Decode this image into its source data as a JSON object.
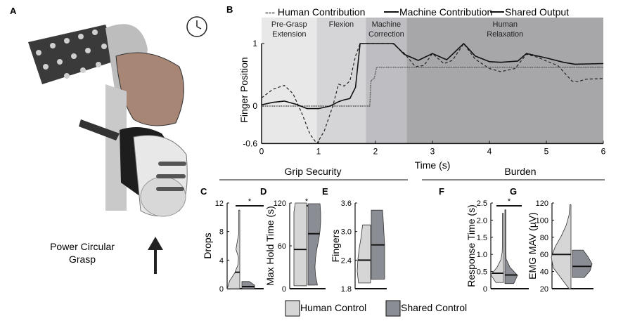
{
  "panel_labels": {
    "a": "A",
    "b": "B",
    "c": "C",
    "d": "D",
    "e": "E",
    "f": "F",
    "g": "G"
  },
  "panel_a": {
    "caption_line1": "Power Circular",
    "caption_line2": "Grasp",
    "icons": [
      "clock-icon",
      "up-arrow-icon",
      "prosthetic-hand-illustration"
    ]
  },
  "groups": {
    "grip_security": "Grip Security",
    "burden": "Burden"
  },
  "legend_bottom": {
    "human": "Human Control",
    "shared": "Shared Control",
    "human_color": "#d6d6d6",
    "shared_color": "#8a8e94"
  },
  "chart_data": [
    {
      "id": "B",
      "type": "line",
      "xlabel": "Time (s)",
      "ylabel": "Finger Position",
      "xlim": [
        0,
        6
      ],
      "ylim": [
        -0.6,
        1
      ],
      "xticks": [
        "0",
        "1",
        "2",
        "3",
        "4",
        "5",
        "6"
      ],
      "yticks": [
        {
          "v": 1,
          "label": "1"
        },
        {
          "v": 0,
          "label": "0"
        },
        {
          "v": -0.6,
          "label": "-0.6"
        }
      ],
      "legend": [
        "--- Human Contribution",
        "Machine Contribution",
        "Shared Output"
      ],
      "phases": [
        {
          "label1": "Pre-Grasp",
          "label2": "Extension",
          "start": 0,
          "end": 0.97,
          "color": "#e8e8e8"
        },
        {
          "label1": "Flexion",
          "label2": "",
          "start": 0.97,
          "end": 1.83,
          "color": "#d5d5d7"
        },
        {
          "label1": "Machine",
          "label2": "Correction",
          "start": 1.83,
          "end": 2.55,
          "color": "#bebdc1"
        },
        {
          "label1": "Human",
          "label2": "Relaxation",
          "start": 2.55,
          "end": 6,
          "color": "#a7a6a8"
        }
      ],
      "series": [
        {
          "name": "Human Contribution",
          "style": "dashed",
          "points": [
            [
              0,
              0.13
            ],
            [
              0.2,
              0.27
            ],
            [
              0.4,
              0.33
            ],
            [
              0.55,
              0.2
            ],
            [
              0.7,
              -0.1
            ],
            [
              0.85,
              -0.45
            ],
            [
              0.97,
              -0.6
            ],
            [
              1.1,
              -0.4
            ],
            [
              1.25,
              0
            ],
            [
              1.35,
              0.35
            ],
            [
              1.45,
              0.32
            ],
            [
              1.55,
              0.4
            ],
            [
              1.65,
              0.8
            ],
            [
              1.73,
              1
            ],
            [
              2.3,
              1
            ],
            [
              2.5,
              0.85
            ],
            [
              2.7,
              0.63
            ],
            [
              2.85,
              0.65
            ],
            [
              3.0,
              0.84
            ],
            [
              3.2,
              0.68
            ],
            [
              3.35,
              0.73
            ],
            [
              3.55,
              1
            ],
            [
              3.75,
              0.75
            ],
            [
              4.0,
              0.6
            ],
            [
              4.2,
              0.55
            ],
            [
              4.45,
              0.6
            ],
            [
              4.65,
              0.83
            ],
            [
              4.85,
              0.78
            ],
            [
              5.0,
              0.72
            ],
            [
              5.2,
              0.65
            ],
            [
              5.3,
              0.55
            ],
            [
              5.45,
              0.4
            ],
            [
              5.55,
              0.39
            ],
            [
              5.7,
              0.43
            ],
            [
              6,
              0.44
            ]
          ]
        },
        {
          "name": "Machine Contribution",
          "style": "dotted",
          "points": [
            [
              0,
              0
            ],
            [
              1.9,
              0
            ],
            [
              1.92,
              0.4
            ],
            [
              1.98,
              0.45
            ],
            [
              2.02,
              0.62
            ],
            [
              6,
              0.62
            ]
          ]
        },
        {
          "name": "Shared Output",
          "style": "solid",
          "points": [
            [
              0,
              0.02
            ],
            [
              0.2,
              0.06
            ],
            [
              0.4,
              0.08
            ],
            [
              0.6,
              0.03
            ],
            [
              0.8,
              -0.04
            ],
            [
              1.0,
              -0.04
            ],
            [
              1.2,
              0
            ],
            [
              1.35,
              0.07
            ],
            [
              1.45,
              0.1
            ],
            [
              1.55,
              0.12
            ],
            [
              1.65,
              0.3
            ],
            [
              1.73,
              1
            ],
            [
              2.32,
              1
            ],
            [
              2.5,
              0.83
            ],
            [
              2.75,
              0.73
            ],
            [
              3.0,
              0.84
            ],
            [
              3.25,
              0.74
            ],
            [
              3.55,
              1
            ],
            [
              3.75,
              0.8
            ],
            [
              4.0,
              0.71
            ],
            [
              4.2,
              0.7
            ],
            [
              4.5,
              0.72
            ],
            [
              4.65,
              0.84
            ],
            [
              5.0,
              0.77
            ],
            [
              5.3,
              0.7
            ],
            [
              5.5,
              0.67
            ],
            [
              6,
              0.68
            ]
          ]
        }
      ]
    },
    {
      "id": "C",
      "type": "violin",
      "ylabel": "Drops",
      "ylim": [
        0,
        12
      ],
      "yticks": [
        "0",
        "4",
        "8",
        "12"
      ],
      "significance": "*",
      "violins": [
        {
          "group": "Human Control",
          "min": 0,
          "max": 11,
          "median": 2.3,
          "density": [
            1,
            0.8,
            0.4,
            0.15,
            0.1,
            0.3,
            0.2,
            0.05,
            0.05,
            0.05,
            0.02
          ]
        },
        {
          "group": "Shared Control",
          "min": 0,
          "max": 1,
          "median": 0.3,
          "density": [
            1,
            1,
            0.6
          ]
        }
      ]
    },
    {
      "id": "D",
      "type": "violin",
      "ylabel": "Max Hold Time (s)",
      "ylim": [
        0,
        120
      ],
      "yticks": [
        "0",
        "60",
        "120"
      ],
      "significance": "*",
      "violins": [
        {
          "group": "Human Control",
          "min": 4,
          "max": 120,
          "median": 55,
          "density": [
            1,
            1,
            1,
            1,
            1,
            1,
            1,
            1,
            1,
            0.9
          ]
        },
        {
          "group": "Shared Control",
          "min": 5,
          "max": 119,
          "median": 77,
          "density": [
            0.75,
            0.6,
            0.55,
            0.6,
            0.7,
            0.85,
            0.95,
            1,
            1,
            0.95
          ]
        }
      ]
    },
    {
      "id": "E",
      "type": "violin",
      "ylabel": "Fingers",
      "ylim": [
        1.8,
        3.6
      ],
      "yticks": [
        "1.8",
        "2.4",
        "3.0",
        "3.6"
      ],
      "significance": "",
      "violins": [
        {
          "group": "Human Control",
          "min": 1.92,
          "max": 3.14,
          "median": 2.4,
          "density": [
            0.9,
            1,
            0.95,
            0.85,
            0.7,
            0.6
          ]
        },
        {
          "group": "Shared Control",
          "min": 2.0,
          "max": 3.45,
          "median": 2.72,
          "density": [
            1,
            1,
            1,
            1,
            0.95,
            0.9,
            0.85
          ]
        }
      ]
    },
    {
      "id": "F",
      "type": "violin",
      "ylabel": "Response Time (s)",
      "ylim": [
        0,
        2.5
      ],
      "yticks": [
        "0",
        "0.5",
        "1.0",
        "1.5",
        "2.0",
        "2.5"
      ],
      "significance": "*",
      "violins": [
        {
          "group": "Human Control",
          "min": 0.18,
          "max": 2.2,
          "median": 0.45,
          "density": [
            0.6,
            1,
            0.5,
            0.2,
            0.1,
            0.05,
            0.03,
            0.02,
            0.02,
            0.01
          ]
        },
        {
          "group": "Shared Control",
          "min": 0.15,
          "max": 2.3,
          "median": 0.4,
          "density": [
            0.7,
            1,
            0.4,
            0.1,
            0.05,
            0.03,
            0.02,
            0.01,
            0.01,
            0.01
          ]
        }
      ]
    },
    {
      "id": "G",
      "type": "violin",
      "ylabel": "EMG MAV (µV)",
      "ylim": [
        20,
        120
      ],
      "yticks": [
        "20",
        "40",
        "60",
        "80",
        "100",
        "120"
      ],
      "significance": "",
      "violins": [
        {
          "group": "Human Control",
          "min": 20,
          "max": 118,
          "median": 60,
          "density": [
            0.1,
            0.5,
            0.9,
            1,
            0.8,
            0.5,
            0.25,
            0.1,
            0.05
          ]
        },
        {
          "group": "Shared Control",
          "min": 33,
          "max": 65,
          "median": 46,
          "density": [
            0.6,
            0.9,
            1,
            0.8,
            0.55
          ]
        }
      ]
    }
  ]
}
